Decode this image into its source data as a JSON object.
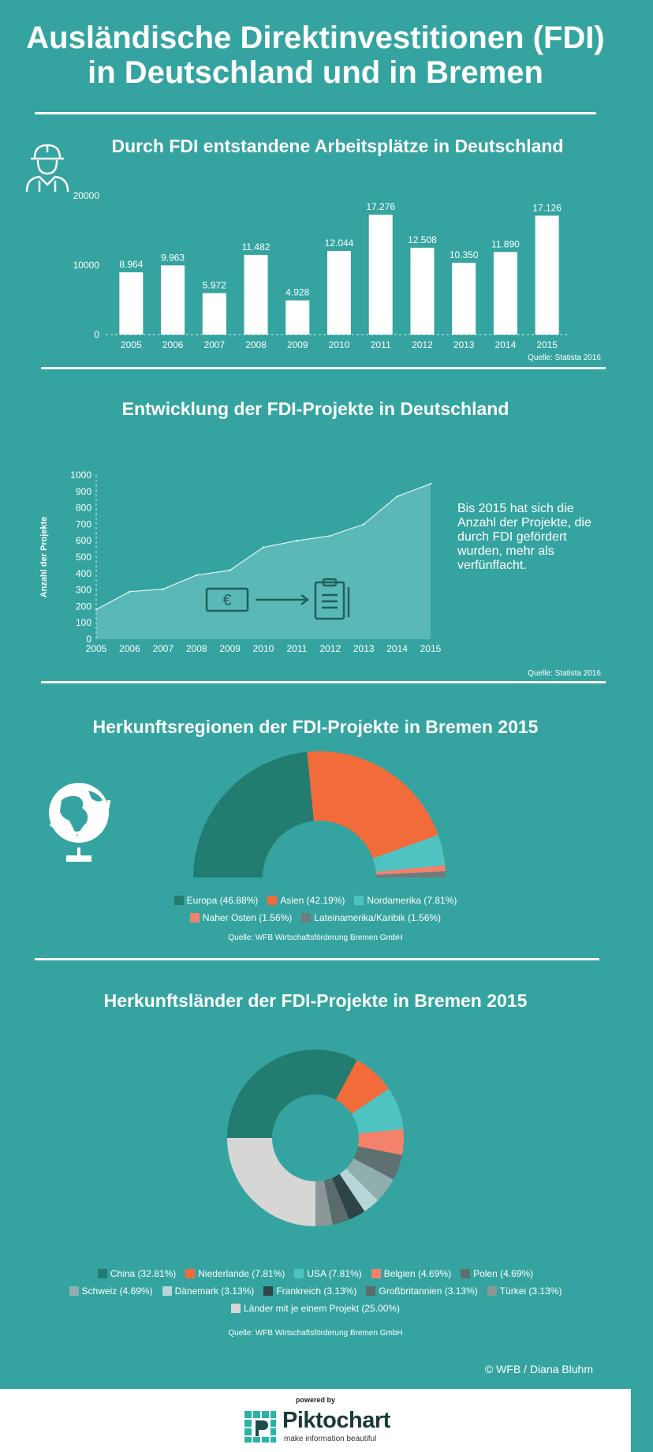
{
  "page": {
    "title_line1": "Ausländische Direktinvestitionen (FDI)",
    "title_line2": "in Deutschland und in Bremen",
    "copyright": "© WFB / Diana Bluhm",
    "powered_by": "powered by",
    "brand": "Piktochart",
    "brand_tagline": "make information beautiful"
  },
  "colors": {
    "background": "#35a4a0",
    "dark_teal": "#237c70",
    "orange": "#f26b3a",
    "light_teal": "#4fc3c2",
    "salmon": "#f4826a",
    "gray": "#6e7c7c"
  },
  "section1": {
    "title": "Durch FDI entstandene Arbeitsplätze in Deutschland",
    "icon": "worker-helmet-icon",
    "source": "Quelle: Statista 2016",
    "chart_data": {
      "type": "bar",
      "categories": [
        "2005",
        "2006",
        "2007",
        "2008",
        "2009",
        "2010",
        "2011",
        "2012",
        "2013",
        "2014",
        "2015"
      ],
      "values": [
        8964,
        9963,
        5972,
        11482,
        4928,
        12044,
        17276,
        12508,
        10350,
        11890,
        17126
      ],
      "value_labels": [
        "8.964",
        "9.963",
        "5.972",
        "11.482",
        "4.928",
        "12.044",
        "17.276",
        "12.508",
        "10.350",
        "11.890",
        "17.126"
      ],
      "ylim": [
        0,
        20000
      ],
      "y_ticks": [
        "0",
        "10000",
        "20000"
      ]
    }
  },
  "section2": {
    "title": "Entwicklung der FDI-Projekte in Deutschland",
    "note": "Bis 2015 hat sich die Anzahl der Projekte, die durch FDI gefördert wurden, mehr als verfünffacht.",
    "source": "Quelle: Statista 2016",
    "icons": [
      "euro-banknote-icon",
      "arrow-right-icon",
      "clipboard-icon"
    ],
    "chart_data": {
      "type": "area",
      "x": [
        "2005",
        "2006",
        "2007",
        "2008",
        "2009",
        "2010",
        "2011",
        "2012",
        "2013",
        "2014",
        "2015"
      ],
      "values": [
        180,
        290,
        305,
        390,
        420,
        560,
        600,
        630,
        700,
        870,
        947
      ],
      "ylabel": "Anzahl der Projekte",
      "ylim": [
        0,
        1000
      ],
      "y_ticks": [
        "0",
        "100",
        "200",
        "300",
        "400",
        "500",
        "600",
        "700",
        "800",
        "900",
        "1000"
      ],
      "grid": false
    }
  },
  "section3": {
    "title": "Herkunftsregionen der FDI-Projekte in Bremen 2015",
    "icon": "globe-icon",
    "source": "Quelle: WFB Wirtschaftsförderung Bremen GmbH",
    "chart_data": {
      "type": "pie",
      "style": "semicircle-donut",
      "categories": [
        "Europa",
        "Asien",
        "Nordamerika",
        "Naher Osten",
        "Lateinamerika/Karibik"
      ],
      "values": [
        46.88,
        42.19,
        7.81,
        1.56,
        1.56
      ],
      "legend_labels": [
        "Europa (46.88%)",
        "Asien (42.19%)",
        "Nordamerika (7.81%)",
        "Naher Osten (1.56%)",
        "Lateinamerika/Karibik (1.56%)"
      ],
      "colors": [
        "#237c70",
        "#f26b3a",
        "#4fc3c2",
        "#f4826a",
        "#6e7c7c"
      ]
    }
  },
  "section4": {
    "title": "Herkunftsländer der FDI-Projekte in Bremen 2015",
    "source": "Quelle: WFB Wirtschaftsförderung Bremen GmbH",
    "chart_data": {
      "type": "pie",
      "style": "donut",
      "categories": [
        "China",
        "Niederlande",
        "USA",
        "Belgien",
        "Polen",
        "Schweiz",
        "Dänemark",
        "Frankreich",
        "Großbritannien",
        "Türkei",
        "Länder mit je einem Projekt"
      ],
      "values": [
        32.81,
        7.81,
        7.81,
        4.69,
        4.69,
        4.69,
        3.13,
        3.13,
        3.13,
        3.13,
        25.0
      ],
      "legend_labels": [
        "China (32.81%)",
        "Niederlande (7.81%)",
        "USA (7.81%)",
        "Belgien (4.69%)",
        "Polen (4.69%)",
        "Schweiz (4.69%)",
        "Dänemark (3.13%)",
        "Frankreich (3.13%)",
        "Großbritannien (3.13%)",
        "Türkei (3.13%)",
        "Länder mit je einem Projekt (25.00%)"
      ],
      "colors": [
        "#237c70",
        "#f26b3a",
        "#4fc3c2",
        "#f4826a",
        "#5f7070",
        "#90aeae",
        "#b6d6d8",
        "#2f4447",
        "#5a6b6b",
        "#8a9797",
        "#d6d6d6"
      ]
    }
  }
}
